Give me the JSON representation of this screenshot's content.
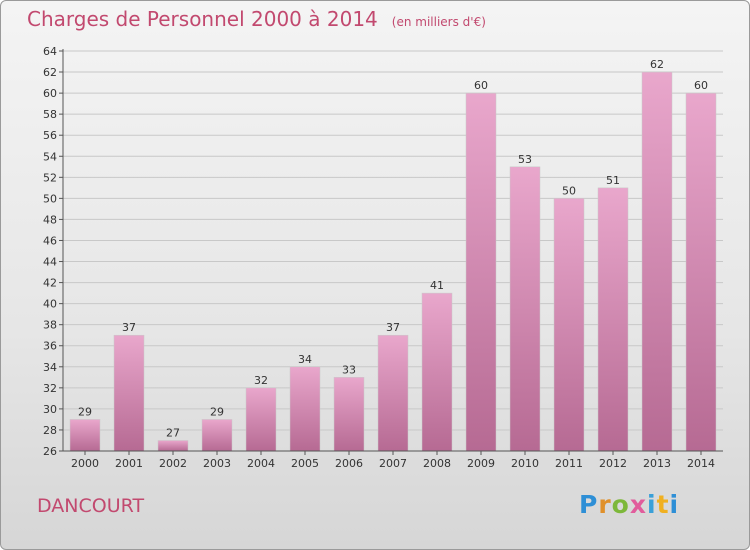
{
  "header": {
    "title": "Charges de Personnel 2000 à 2014",
    "subtitle": "(en milliers d'€)"
  },
  "footer": {
    "commune": "DANCOURT",
    "logo_letters": [
      "P",
      "r",
      "o",
      "x",
      "i",
      "t",
      "i"
    ]
  },
  "colors": {
    "title": "#c2496f",
    "bar_top": "#e9a7cc",
    "bar_bottom": "#b66a93",
    "grid": "#c8c8c8"
  },
  "chart_data": {
    "type": "bar",
    "title": "Charges de Personnel 2000 à 2014",
    "subtitle": "(en milliers d'€)",
    "categories": [
      "2000",
      "2001",
      "2002",
      "2003",
      "2004",
      "2005",
      "2006",
      "2007",
      "2008",
      "2009",
      "2010",
      "2011",
      "2012",
      "2013",
      "2014"
    ],
    "values": [
      29,
      37,
      27,
      29,
      32,
      34,
      33,
      37,
      41,
      60,
      53,
      50,
      51,
      62,
      60
    ],
    "ylim": [
      26,
      64
    ],
    "yticks": [
      26,
      28,
      30,
      32,
      34,
      36,
      38,
      40,
      42,
      44,
      46,
      48,
      50,
      52,
      54,
      56,
      58,
      60,
      62,
      64
    ],
    "grid": true,
    "xlabel": "",
    "ylabel": ""
  }
}
